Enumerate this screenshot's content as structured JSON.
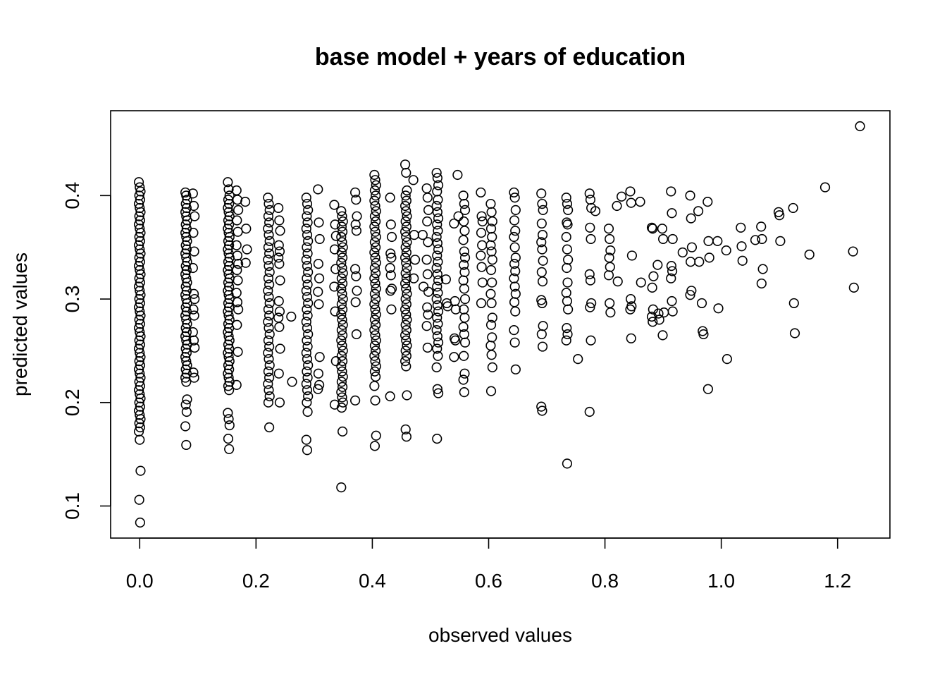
{
  "chart_data": {
    "type": "scatter",
    "title": "base model + years of education",
    "xlabel": "observed values",
    "ylabel": "predicted values",
    "xlim": [
      -0.05,
      1.29
    ],
    "ylim": [
      0.069,
      0.482
    ],
    "xticks": [
      0.0,
      0.2,
      0.4,
      0.6,
      0.8,
      1.0,
      1.2
    ],
    "yticks": [
      0.1,
      0.2,
      0.3,
      0.4
    ],
    "xtick_labels": [
      "0.0",
      "0.2",
      "0.4",
      "0.6",
      "0.8",
      "1.0",
      "1.2"
    ],
    "ytick_labels": [
      "0.1",
      "0.2",
      "0.3",
      "0.4"
    ],
    "grid": false,
    "legend": "none",
    "marker": "open-circle",
    "point_color": "#000000",
    "columns": [
      {
        "x": 0.0,
        "y": [
          0.413,
          0.408,
          0.404,
          0.4,
          0.396,
          0.392,
          0.388,
          0.384,
          0.38,
          0.376,
          0.372,
          0.368,
          0.364,
          0.36,
          0.356,
          0.352,
          0.348,
          0.344,
          0.34,
          0.336,
          0.332,
          0.328,
          0.324,
          0.32,
          0.316,
          0.312,
          0.308,
          0.304,
          0.3,
          0.296,
          0.292,
          0.288,
          0.284,
          0.28,
          0.276,
          0.272,
          0.268,
          0.264,
          0.26,
          0.256,
          0.252,
          0.248,
          0.244,
          0.24,
          0.236,
          0.232,
          0.228,
          0.224,
          0.22,
          0.216,
          0.212,
          0.208,
          0.204,
          0.2,
          0.196,
          0.192,
          0.188,
          0.184,
          0.18,
          0.176,
          0.172,
          0.164,
          0.134,
          0.106,
          0.084
        ]
      },
      {
        "x": 0.08,
        "y": [
          0.403,
          0.4,
          0.396,
          0.392,
          0.388,
          0.384,
          0.38,
          0.376,
          0.372,
          0.368,
          0.364,
          0.36,
          0.356,
          0.352,
          0.348,
          0.344,
          0.34,
          0.336,
          0.332,
          0.328,
          0.324,
          0.32,
          0.316,
          0.312,
          0.308,
          0.304,
          0.3,
          0.296,
          0.292,
          0.288,
          0.284,
          0.28,
          0.276,
          0.272,
          0.268,
          0.264,
          0.26,
          0.256,
          0.252,
          0.248,
          0.244,
          0.24,
          0.236,
          0.232,
          0.228,
          0.224,
          0.22,
          0.203,
          0.198,
          0.191,
          0.177,
          0.159
        ]
      },
      {
        "x": 0.093,
        "y": [
          0.402,
          0.39,
          0.38,
          0.364,
          0.346,
          0.33,
          0.305,
          0.3,
          0.29,
          0.284,
          0.268,
          0.26,
          0.253,
          0.229,
          0.224
        ]
      },
      {
        "x": 0.153,
        "y": [
          0.413,
          0.406,
          0.4,
          0.396,
          0.392,
          0.388,
          0.384,
          0.38,
          0.376,
          0.372,
          0.368,
          0.364,
          0.36,
          0.356,
          0.352,
          0.348,
          0.344,
          0.34,
          0.336,
          0.332,
          0.328,
          0.324,
          0.32,
          0.316,
          0.312,
          0.308,
          0.304,
          0.3,
          0.296,
          0.292,
          0.288,
          0.284,
          0.28,
          0.276,
          0.272,
          0.268,
          0.264,
          0.26,
          0.256,
          0.252,
          0.248,
          0.244,
          0.24,
          0.236,
          0.232,
          0.228,
          0.224,
          0.22,
          0.216,
          0.212,
          0.19,
          0.184,
          0.178,
          0.165,
          0.155
        ]
      },
      {
        "x": 0.168,
        "y": [
          0.405,
          0.396,
          0.386,
          0.376,
          0.365,
          0.352,
          0.342,
          0.334,
          0.328,
          0.318,
          0.306,
          0.297,
          0.29,
          0.275,
          0.249,
          0.217
        ]
      },
      {
        "x": 0.183,
        "y": [
          0.394,
          0.368,
          0.348,
          0.335
        ]
      },
      {
        "x": 0.222,
        "y": [
          0.398,
          0.392,
          0.386,
          0.38,
          0.374,
          0.368,
          0.362,
          0.356,
          0.35,
          0.344,
          0.338,
          0.332,
          0.326,
          0.32,
          0.314,
          0.308,
          0.302,
          0.296,
          0.29,
          0.284,
          0.278,
          0.272,
          0.266,
          0.26,
          0.254,
          0.248,
          0.242,
          0.236,
          0.23,
          0.224,
          0.218,
          0.212,
          0.206,
          0.2,
          0.176
        ]
      },
      {
        "x": 0.24,
        "y": [
          0.388,
          0.376,
          0.366,
          0.352,
          0.346,
          0.34,
          0.334,
          0.318,
          0.298,
          0.288,
          0.282,
          0.273,
          0.252,
          0.228,
          0.2
        ]
      },
      {
        "x": 0.262,
        "y": [
          0.283,
          0.22
        ]
      },
      {
        "x": 0.288,
        "y": [
          0.398,
          0.392,
          0.386,
          0.38,
          0.374,
          0.368,
          0.362,
          0.356,
          0.35,
          0.344,
          0.338,
          0.332,
          0.326,
          0.32,
          0.314,
          0.308,
          0.302,
          0.296,
          0.29,
          0.284,
          0.278,
          0.272,
          0.266,
          0.26,
          0.254,
          0.248,
          0.242,
          0.236,
          0.23,
          0.224,
          0.218,
          0.212,
          0.206,
          0.2,
          0.191,
          0.164,
          0.154
        ]
      },
      {
        "x": 0.308,
        "y": [
          0.406,
          0.374,
          0.358,
          0.334,
          0.32,
          0.307,
          0.295,
          0.244,
          0.228,
          0.217,
          0.213
        ]
      },
      {
        "x": 0.336,
        "y": [
          0.391,
          0.372,
          0.361,
          0.348,
          0.329,
          0.312,
          0.288,
          0.24,
          0.198
        ]
      },
      {
        "x": 0.348,
        "y": [
          0.385,
          0.38,
          0.375,
          0.37,
          0.365,
          0.36,
          0.355,
          0.35,
          0.345,
          0.34,
          0.335,
          0.33,
          0.325,
          0.32,
          0.315,
          0.31,
          0.305,
          0.3,
          0.295,
          0.29,
          0.285,
          0.28,
          0.275,
          0.27,
          0.265,
          0.26,
          0.255,
          0.25,
          0.245,
          0.24,
          0.235,
          0.23,
          0.225,
          0.22,
          0.215,
          0.21,
          0.205,
          0.2,
          0.195,
          0.172,
          0.118
        ]
      },
      {
        "x": 0.372,
        "y": [
          0.403,
          0.396,
          0.38,
          0.372,
          0.366,
          0.329,
          0.322,
          0.308,
          0.297,
          0.266,
          0.202
        ]
      },
      {
        "x": 0.405,
        "y": [
          0.42,
          0.415,
          0.41,
          0.405,
          0.4,
          0.395,
          0.39,
          0.385,
          0.38,
          0.375,
          0.37,
          0.365,
          0.36,
          0.355,
          0.35,
          0.345,
          0.34,
          0.335,
          0.33,
          0.325,
          0.32,
          0.315,
          0.31,
          0.305,
          0.3,
          0.295,
          0.29,
          0.285,
          0.28,
          0.275,
          0.27,
          0.265,
          0.26,
          0.255,
          0.25,
          0.245,
          0.24,
          0.235,
          0.23,
          0.225,
          0.216,
          0.202,
          0.168,
          0.158
        ]
      },
      {
        "x": 0.432,
        "y": [
          0.398,
          0.372,
          0.36,
          0.344,
          0.34,
          0.33,
          0.323,
          0.31,
          0.308,
          0.29,
          0.206
        ]
      },
      {
        "x": 0.458,
        "y": [
          0.43,
          0.422,
          0.405,
          0.4,
          0.395,
          0.39,
          0.385,
          0.38,
          0.375,
          0.37,
          0.365,
          0.36,
          0.355,
          0.35,
          0.345,
          0.34,
          0.335,
          0.33,
          0.325,
          0.32,
          0.315,
          0.31,
          0.305,
          0.3,
          0.295,
          0.29,
          0.285,
          0.28,
          0.275,
          0.27,
          0.265,
          0.26,
          0.255,
          0.25,
          0.245,
          0.24,
          0.235,
          0.207,
          0.174,
          0.167
        ]
      },
      {
        "x": 0.472,
        "y": [
          0.415,
          0.362,
          0.338,
          0.32
        ]
      },
      {
        "x": 0.488,
        "y": [
          0.362,
          0.312
        ]
      },
      {
        "x": 0.495,
        "y": [
          0.407,
          0.398,
          0.386,
          0.375,
          0.355,
          0.338,
          0.324,
          0.307,
          0.292,
          0.285,
          0.274,
          0.253
        ]
      },
      {
        "x": 0.512,
        "y": [
          0.422,
          0.417,
          0.41,
          0.404,
          0.396,
          0.39,
          0.384,
          0.378,
          0.372,
          0.366,
          0.36,
          0.354,
          0.348,
          0.342,
          0.336,
          0.33,
          0.324,
          0.318,
          0.312,
          0.306,
          0.3,
          0.294,
          0.288,
          0.282,
          0.276,
          0.27,
          0.264,
          0.258,
          0.252,
          0.245,
          0.234,
          0.213,
          0.209,
          0.165
        ]
      },
      {
        "x": 0.528,
        "y": [
          0.319,
          0.296,
          0.293
        ]
      },
      {
        "x": 0.542,
        "y": [
          0.373,
          0.298,
          0.29,
          0.262,
          0.26,
          0.244
        ]
      },
      {
        "x": 0.558,
        "y": [
          0.4,
          0.392,
          0.386,
          0.375,
          0.366,
          0.357,
          0.346,
          0.34,
          0.333,
          0.326,
          0.318,
          0.31,
          0.3,
          0.29,
          0.282,
          0.273,
          0.266,
          0.258,
          0.245,
          0.228,
          0.222,
          0.21
        ]
      },
      {
        "x": 0.548,
        "y": [
          0.42,
          0.38
        ]
      },
      {
        "x": 0.588,
        "y": [
          0.403,
          0.38,
          0.375,
          0.364,
          0.352,
          0.342,
          0.331,
          0.316,
          0.296
        ]
      },
      {
        "x": 0.605,
        "y": [
          0.392,
          0.384,
          0.375,
          0.368,
          0.36,
          0.352,
          0.346,
          0.338,
          0.328,
          0.316,
          0.305,
          0.296,
          0.282,
          0.275,
          0.263,
          0.255,
          0.246,
          0.234,
          0.211
        ]
      },
      {
        "x": 0.645,
        "y": [
          0.403,
          0.398,
          0.386,
          0.376,
          0.366,
          0.36,
          0.35,
          0.34,
          0.334,
          0.327,
          0.32,
          0.312,
          0.305,
          0.297,
          0.288,
          0.27,
          0.258,
          0.232
        ]
      },
      {
        "x": 0.692,
        "y": [
          0.402,
          0.392,
          0.386,
          0.373,
          0.362,
          0.355,
          0.348,
          0.337,
          0.326,
          0.317,
          0.299,
          0.296,
          0.274,
          0.266,
          0.254,
          0.196,
          0.192
        ]
      },
      {
        "x": 0.735,
        "y": [
          0.398,
          0.392,
          0.386,
          0.374,
          0.372,
          0.36,
          0.348,
          0.338,
          0.33,
          0.316,
          0.306,
          0.298,
          0.29,
          0.272,
          0.266,
          0.26,
          0.141
        ]
      },
      {
        "x": 0.755,
        "y": [
          0.242
        ]
      },
      {
        "x": 0.775,
        "y": [
          0.402,
          0.396,
          0.388,
          0.369,
          0.358,
          0.324,
          0.318,
          0.296,
          0.292,
          0.26,
          0.191
        ]
      },
      {
        "x": 0.785,
        "y": [
          0.385
        ]
      },
      {
        "x": 0.808,
        "y": [
          0.368,
          0.358,
          0.347,
          0.34,
          0.331,
          0.323,
          0.296,
          0.287
        ]
      },
      {
        "x": 0.822,
        "y": [
          0.39,
          0.317
        ]
      },
      {
        "x": 0.83,
        "y": [
          0.399
        ]
      },
      {
        "x": 0.845,
        "y": [
          0.404,
          0.393,
          0.342,
          0.3,
          0.293,
          0.29,
          0.262
        ]
      },
      {
        "x": 0.862,
        "y": [
          0.394,
          0.316
        ]
      },
      {
        "x": 0.882,
        "y": [
          0.369,
          0.368,
          0.322,
          0.311,
          0.29,
          0.283,
          0.278
        ]
      },
      {
        "x": 0.892,
        "y": [
          0.333,
          0.286,
          0.28
        ]
      },
      {
        "x": 0.9,
        "y": [
          0.368,
          0.358,
          0.287,
          0.265
        ]
      },
      {
        "x": 0.915,
        "y": [
          0.404,
          0.383,
          0.358,
          0.332,
          0.327,
          0.32,
          0.298,
          0.288
        ]
      },
      {
        "x": 0.935,
        "y": [
          0.345
        ]
      },
      {
        "x": 0.948,
        "y": [
          0.4,
          0.378,
          0.35,
          0.336,
          0.308,
          0.304
        ]
      },
      {
        "x": 0.962,
        "y": [
          0.385,
          0.336
        ]
      },
      {
        "x": 0.968,
        "y": [
          0.296,
          0.269,
          0.266
        ]
      },
      {
        "x": 0.978,
        "y": [
          0.394,
          0.356,
          0.34,
          0.213
        ]
      },
      {
        "x": 0.995,
        "y": [
          0.356,
          0.291
        ]
      },
      {
        "x": 1.01,
        "y": [
          0.347,
          0.242
        ]
      },
      {
        "x": 1.035,
        "y": [
          0.369,
          0.351,
          0.337
        ]
      },
      {
        "x": 1.06,
        "y": [
          0.357
        ]
      },
      {
        "x": 1.07,
        "y": [
          0.37,
          0.358,
          0.329,
          0.315
        ]
      },
      {
        "x": 1.1,
        "y": [
          0.384,
          0.381,
          0.356
        ]
      },
      {
        "x": 1.125,
        "y": [
          0.388,
          0.296,
          0.267
        ]
      },
      {
        "x": 1.153,
        "y": [
          0.343
        ]
      },
      {
        "x": 1.18,
        "y": [
          0.408
        ]
      },
      {
        "x": 1.228,
        "y": [
          0.346,
          0.311
        ]
      },
      {
        "x": 1.24,
        "y": [
          0.467
        ]
      }
    ]
  }
}
